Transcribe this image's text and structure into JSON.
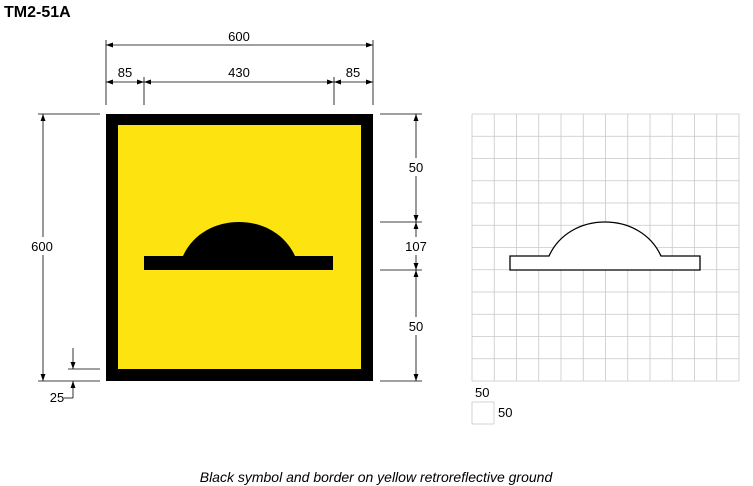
{
  "title": "TM2-51A",
  "dimensions": {
    "overall_width": "600",
    "left_inset": "85",
    "symbol_width": "430",
    "right_inset": "85",
    "overall_height": "600",
    "border": "25",
    "top_gap": "50",
    "symbol_height": "107",
    "bottom_gap": "50"
  },
  "grid_legend": {
    "cell_width": "50",
    "cell_height": "50"
  },
  "caption": "Black symbol and border on yellow retroreflective ground",
  "colors": {
    "ground": "#fde30f",
    "border": "#000000",
    "symbol": "#000000",
    "grid": "#c8c8c8"
  }
}
